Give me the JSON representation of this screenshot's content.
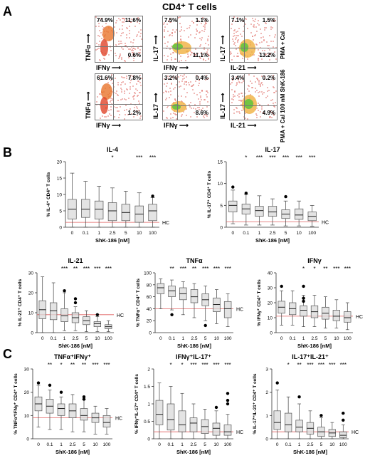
{
  "panel_a": {
    "letter": "A",
    "title": "CD4⁺ T cells",
    "cond_top": "PMA + CaI",
    "cond_bottom": "PMA + CaI 100 nM ShK-186",
    "plots": [
      {
        "x": "IFNγ",
        "y": "TNFα",
        "q": [
          "74.9%",
          "11.6%",
          "",
          "0.6%"
        ]
      },
      {
        "x": "IFNγ",
        "y": "IL-17",
        "q": [
          "7.5%",
          "1.1%",
          "",
          "11.1%"
        ]
      },
      {
        "x": "IL-21",
        "y": "IL-17",
        "q": [
          "7.1%",
          "1.5%",
          "",
          "13.2%"
        ]
      },
      {
        "x": "IFNγ",
        "y": "TNFα",
        "q": [
          "61.6%",
          "7.8%",
          "",
          "1.2%"
        ]
      },
      {
        "x": "IFNγ",
        "y": "IL-17",
        "q": [
          "3.2%",
          "0.4%",
          "",
          "8.6%"
        ]
      },
      {
        "x": "IL-21",
        "y": "IL-17",
        "q": [
          "3.4%",
          "0.2%",
          "",
          "4.9%"
        ]
      }
    ]
  },
  "panel_b": {
    "letter": "B"
  },
  "panel_c": {
    "letter": "C"
  },
  "chart_data": [
    {
      "type": "box",
      "title": "IL-4",
      "ylabel": "% IL-4⁺ CD4⁺ T cells",
      "xlabel": "ShK-186 [nM]",
      "categories": [
        "0",
        "0.1",
        "1",
        "2.5",
        "5",
        "10",
        "100"
      ],
      "ylim": [
        0,
        20
      ],
      "yticks": [
        0,
        5,
        10,
        15,
        20
      ],
      "significance": [
        "",
        "",
        "",
        "*",
        "",
        "***",
        "***"
      ],
      "hc_value": 1.5,
      "hc_label": "HC",
      "boxes": [
        {
          "min": 0,
          "q1": 2.5,
          "median": 5.5,
          "q3": 8.5,
          "max": 16.5
        },
        {
          "min": 0,
          "q1": 3,
          "median": 5.5,
          "q3": 8.5,
          "max": 14
        },
        {
          "min": 0,
          "q1": 2.5,
          "median": 5.5,
          "q3": 8,
          "max": 12.5
        },
        {
          "min": 0,
          "q1": 2,
          "median": 5,
          "q3": 7.5,
          "max": 12
        },
        {
          "min": 0,
          "q1": 2,
          "median": 4.5,
          "q3": 7,
          "max": 11
        },
        {
          "min": 0,
          "q1": 1.5,
          "median": 4,
          "q3": 6.5,
          "max": 10.5
        },
        {
          "min": 0,
          "q1": 2,
          "median": 5,
          "q3": 7,
          "max": 9
        }
      ],
      "outliers": [
        [
          6,
          9.5
        ]
      ]
    },
    {
      "type": "box",
      "title": "IL-17",
      "ylabel": "% IL-17⁺ CD4⁺ T cells",
      "xlabel": "ShK-186 [nM]",
      "categories": [
        "0",
        "0.1",
        "1",
        "2.5",
        "5",
        "10",
        "100"
      ],
      "ylim": [
        0,
        15
      ],
      "yticks": [
        0,
        5,
        10,
        15
      ],
      "significance": [
        "",
        "*",
        "***",
        "***",
        "***",
        "***",
        "***"
      ],
      "hc_value": 1.2,
      "hc_label": "HC",
      "boxes": [
        {
          "min": 0.8,
          "q1": 3.5,
          "median": 5,
          "q3": 6,
          "max": 8.5
        },
        {
          "min": 0.5,
          "q1": 3,
          "median": 4.2,
          "q3": 5.3,
          "max": 7.5
        },
        {
          "min": 0.5,
          "q1": 2.5,
          "median": 3.8,
          "q3": 4.8,
          "max": 7.2
        },
        {
          "min": 0.5,
          "q1": 2.5,
          "median": 3.5,
          "q3": 4.8,
          "max": 6.5
        },
        {
          "min": 0.3,
          "q1": 2,
          "median": 3,
          "q3": 4,
          "max": 6
        },
        {
          "min": 0.3,
          "q1": 1.8,
          "median": 2.8,
          "q3": 4.2,
          "max": 6
        },
        {
          "min": 0.2,
          "q1": 1.5,
          "median": 2.5,
          "q3": 3.5,
          "max": 5
        }
      ],
      "outliers": [
        [
          0,
          9.2
        ],
        [
          1,
          7.8
        ],
        [
          4,
          7.0
        ]
      ]
    },
    {
      "type": "box",
      "title": "IL-21",
      "ylabel": "% IL-21⁺ CD4⁺ T cells",
      "xlabel": "ShK-186 [nM]",
      "categories": [
        "0",
        "0.1",
        "1",
        "2.5",
        "5",
        "10",
        "100"
      ],
      "ylim": [
        0,
        30
      ],
      "yticks": [
        0,
        10,
        20,
        30
      ],
      "significance": [
        "",
        "",
        "***",
        "**",
        "***",
        "***",
        "***"
      ],
      "hc_value": 9,
      "hc_label": "HC",
      "boxes": [
        {
          "min": 0,
          "q1": 7,
          "median": 11.5,
          "q3": 16,
          "max": 28
        },
        {
          "min": 0,
          "q1": 6.5,
          "median": 11,
          "q3": 15,
          "max": 25
        },
        {
          "min": 1,
          "q1": 5.5,
          "median": 8.5,
          "q3": 12,
          "max": 20
        },
        {
          "min": 1,
          "q1": 5,
          "median": 7.5,
          "q3": 10,
          "max": 13
        },
        {
          "min": 0.5,
          "q1": 4,
          "median": 6,
          "q3": 8,
          "max": 11
        },
        {
          "min": 0.5,
          "q1": 3,
          "median": 4.5,
          "q3": 5.5,
          "max": 8
        },
        {
          "min": 0.5,
          "q1": 2,
          "median": 3,
          "q3": 4,
          "max": 6
        }
      ],
      "outliers": [
        [
          2,
          21
        ],
        [
          3,
          15
        ],
        [
          3,
          17
        ],
        [
          5,
          9
        ]
      ]
    },
    {
      "type": "box",
      "title": "TNFα",
      "ylabel": "% TNFα⁺ CD4⁺ T cells",
      "xlabel": "ShK-186 [nM]",
      "categories": [
        "0",
        "0.1",
        "1",
        "2.5",
        "5",
        "10",
        "100"
      ],
      "ylim": [
        0,
        100
      ],
      "yticks": [
        0,
        20,
        40,
        60,
        80,
        100
      ],
      "significance": [
        "",
        "**",
        "***",
        "**",
        "***",
        "***",
        "***"
      ],
      "hc_value": 40,
      "hc_label": "HC",
      "boxes": [
        {
          "min": 40,
          "q1": 65,
          "median": 75,
          "q3": 82,
          "max": 90
        },
        {
          "min": 38,
          "q1": 60,
          "median": 70,
          "q3": 78,
          "max": 88
        },
        {
          "min": 30,
          "q1": 55,
          "median": 65,
          "q3": 75,
          "max": 85
        },
        {
          "min": 25,
          "q1": 50,
          "median": 60,
          "q3": 72,
          "max": 82
        },
        {
          "min": 20,
          "q1": 45,
          "median": 55,
          "q3": 65,
          "max": 78
        },
        {
          "min": 15,
          "q1": 35,
          "median": 47,
          "q3": 58,
          "max": 72
        },
        {
          "min": 10,
          "q1": 25,
          "median": 40,
          "q3": 52,
          "max": 65
        }
      ],
      "outliers": [
        [
          1,
          30
        ],
        [
          4,
          12
        ]
      ]
    },
    {
      "type": "box",
      "title": "IFNγ",
      "ylabel": "% IFNγ⁺ CD4⁺ T cells",
      "xlabel": "ShK-186 [nM]",
      "categories": [
        "0",
        "0.1",
        "1",
        "2.5",
        "5",
        "10",
        "100"
      ],
      "ylim": [
        0,
        40
      ],
      "yticks": [
        0,
        10,
        20,
        30,
        40
      ],
      "significance": [
        "",
        "",
        "*",
        "*",
        "**",
        "***",
        "***"
      ],
      "hc_value": 11,
      "hc_label": "HC",
      "boxes": [
        {
          "min": 5,
          "q1": 13,
          "median": 17,
          "q3": 21,
          "max": 28
        },
        {
          "min": 5,
          "q1": 12,
          "median": 16,
          "q3": 20,
          "max": 28
        },
        {
          "min": 4,
          "q1": 11,
          "median": 15,
          "q3": 18,
          "max": 25
        },
        {
          "min": 4,
          "q1": 10,
          "median": 14,
          "q3": 18,
          "max": 25
        },
        {
          "min": 3,
          "q1": 9,
          "median": 13,
          "q3": 17,
          "max": 24
        },
        {
          "min": 3,
          "q1": 8,
          "median": 11,
          "q3": 15,
          "max": 22
        },
        {
          "min": 2,
          "q1": 7,
          "median": 10,
          "q3": 14,
          "max": 20
        }
      ],
      "outliers": [
        [
          0,
          31
        ],
        [
          2,
          31
        ],
        [
          2,
          23
        ],
        [
          2,
          21
        ]
      ]
    },
    {
      "type": "box",
      "title": "TNFα⁺IFNγ⁺",
      "ylabel": "% TNFα⁺IFNγ⁺ CD4⁺ T cells",
      "xlabel": "ShK-186 [nM]",
      "categories": [
        "0",
        "0.1",
        "1",
        "2.5",
        "5",
        "10",
        "100"
      ],
      "ylim": [
        0,
        30
      ],
      "yticks": [
        0,
        10,
        20,
        30
      ],
      "significance": [
        "",
        "**",
        "*",
        "**",
        "**",
        "***",
        "***"
      ],
      "hc_value": 9,
      "hc_label": "HC",
      "boxes": [
        {
          "min": 5,
          "q1": 12,
          "median": 15,
          "q3": 18,
          "max": 23
        },
        {
          "min": 4,
          "q1": 11,
          "median": 14,
          "q3": 17,
          "max": 21
        },
        {
          "min": 4,
          "q1": 10,
          "median": 13,
          "q3": 15,
          "max": 18
        },
        {
          "min": 3,
          "q1": 9,
          "median": 12,
          "q3": 15,
          "max": 19
        },
        {
          "min": 3,
          "q1": 8,
          "median": 10,
          "q3": 13,
          "max": 17
        },
        {
          "min": 2,
          "q1": 7,
          "median": 9,
          "q3": 11,
          "max": 14
        },
        {
          "min": 2,
          "q1": 5,
          "median": 7,
          "q3": 10,
          "max": 13
        }
      ],
      "outliers": [
        [
          0,
          24
        ],
        [
          1,
          23
        ],
        [
          2,
          20
        ],
        [
          4,
          18
        ],
        [
          4,
          17
        ]
      ]
    },
    {
      "type": "box",
      "title": "IFNγ⁺IL-17⁺",
      "ylabel": "% IFNγ⁺IL-17⁺ CD4⁺ T cells",
      "xlabel": "ShK-186 [nM]",
      "categories": [
        "0",
        "0.1",
        "1",
        "2.5",
        "5",
        "10",
        "100"
      ],
      "ylim": [
        0,
        2
      ],
      "yticks": [
        0,
        0.5,
        1,
        1.5,
        2
      ],
      "significance": [
        "",
        "*",
        "*",
        "***",
        "***",
        "***",
        "***"
      ],
      "hc_value": 0.2,
      "hc_label": "HC",
      "boxes": [
        {
          "min": 0,
          "q1": 0.4,
          "median": 0.7,
          "q3": 1.1,
          "max": 1.6
        },
        {
          "min": 0,
          "q1": 0.25,
          "median": 0.55,
          "q3": 1,
          "max": 1.5
        },
        {
          "min": 0,
          "q1": 0.2,
          "median": 0.4,
          "q3": 0.8,
          "max": 1.3
        },
        {
          "min": 0,
          "q1": 0.2,
          "median": 0.45,
          "q3": 0.6,
          "max": 1
        },
        {
          "min": 0,
          "q1": 0.15,
          "median": 0.35,
          "q3": 0.55,
          "max": 0.85
        },
        {
          "min": 0,
          "q1": 0.1,
          "median": 0.3,
          "q3": 0.45,
          "max": 0.8
        },
        {
          "min": 0,
          "q1": 0.1,
          "median": 0.2,
          "q3": 0.4,
          "max": 0.7
        }
      ],
      "outliers": [
        [
          5,
          0.9
        ],
        [
          6,
          1.0
        ],
        [
          6,
          1.1
        ],
        [
          6,
          1.3
        ]
      ]
    },
    {
      "type": "box",
      "title": "IL-17⁺IL-21⁺",
      "ylabel": "% IL-17⁺IL-21⁺ CD4⁺ T cells",
      "xlabel": "ShK-186 [nM]",
      "categories": [
        "0",
        "0.1",
        "1",
        "2.5",
        "5",
        "10",
        "100"
      ],
      "ylim": [
        0,
        3
      ],
      "yticks": [
        0,
        1,
        2,
        3
      ],
      "significance": [
        "",
        "*",
        "**",
        "***",
        "***",
        "***",
        "***"
      ],
      "hc_value": 0.3,
      "hc_label": "HC",
      "boxes": [
        {
          "min": 0,
          "q1": 0.4,
          "median": 0.7,
          "q3": 1.2,
          "max": 2.1
        },
        {
          "min": 0,
          "q1": 0.3,
          "median": 0.6,
          "q3": 1.1,
          "max": 1.8
        },
        {
          "min": 0,
          "q1": 0.3,
          "median": 0.5,
          "q3": 0.8,
          "max": 1.5
        },
        {
          "min": 0,
          "q1": 0.2,
          "median": 0.45,
          "q3": 0.7,
          "max": 1.2
        },
        {
          "min": 0,
          "q1": 0.1,
          "median": 0.3,
          "q3": 0.5,
          "max": 0.9
        },
        {
          "min": 0,
          "q1": 0.1,
          "median": 0.25,
          "q3": 0.4,
          "max": 0.7
        },
        {
          "min": 0,
          "q1": 0.05,
          "median": 0.15,
          "q3": 0.3,
          "max": 0.6
        }
      ],
      "outliers": [
        [
          0,
          2.4
        ],
        [
          2,
          1.8
        ],
        [
          4,
          1.0
        ],
        [
          6,
          0.8
        ],
        [
          6,
          1.1
        ]
      ]
    }
  ]
}
